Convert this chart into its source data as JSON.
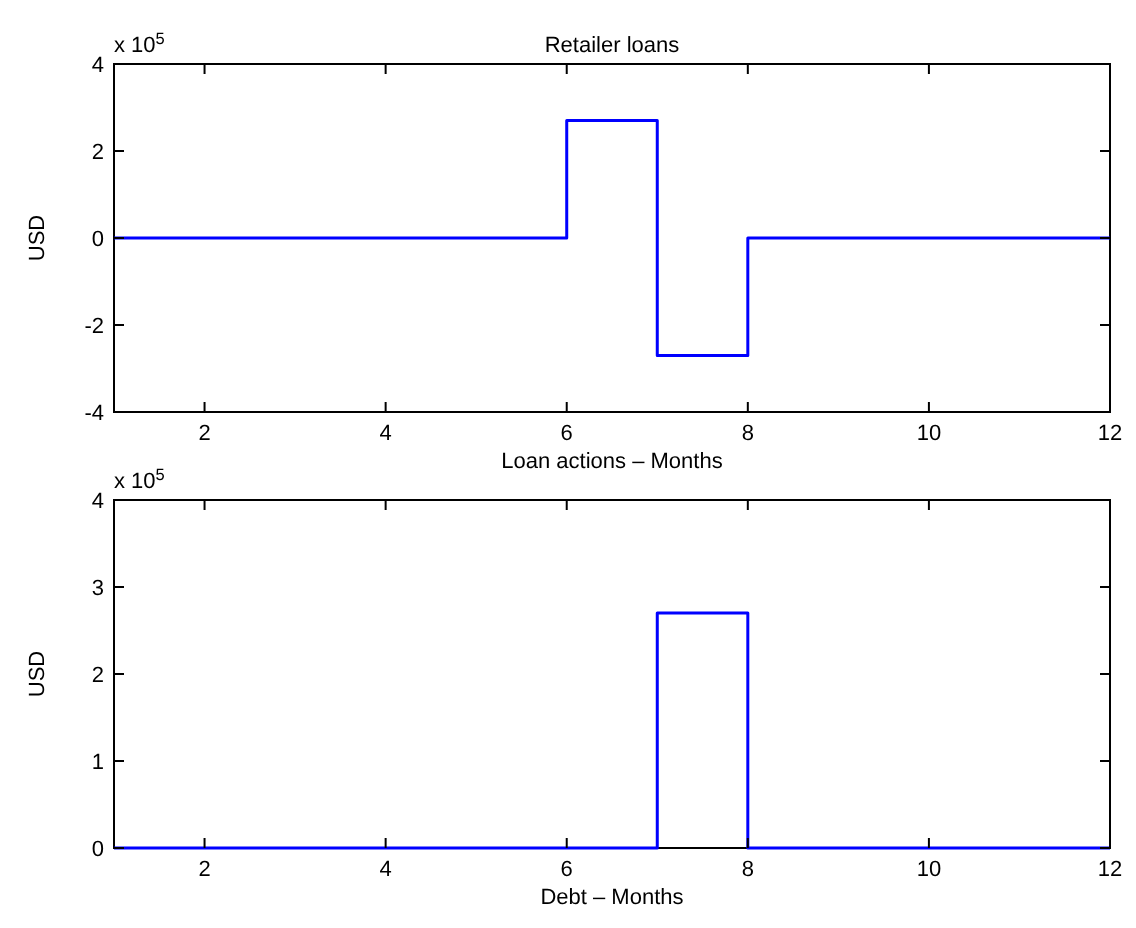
{
  "chart_data": [
    {
      "type": "step",
      "title": "Retailer loans",
      "xlabel": "Loan actions – Months",
      "ylabel": "USD",
      "annotations": [
        "x 10$^{5}$"
      ],
      "x": [
        1,
        2,
        3,
        4,
        5,
        6,
        7,
        8,
        9,
        10,
        11,
        12
      ],
      "series": [
        {
          "color": "#0000ff",
          "values": [
            0,
            0,
            0,
            0,
            0,
            2.7,
            -2.7,
            0,
            0,
            0,
            0,
            0
          ]
        }
      ],
      "xlim": [
        1,
        12
      ],
      "xticks": [
        2,
        4,
        6,
        8,
        10,
        12
      ],
      "ylim": [
        -4,
        4
      ],
      "yticks": [
        -4,
        -2,
        0,
        2,
        4
      ],
      "grid": false
    },
    {
      "type": "step",
      "xlabel": "Debt – Months",
      "ylabel": "USD",
      "annotations": [
        "x 10$^{5}$"
      ],
      "x": [
        1,
        2,
        3,
        4,
        5,
        6,
        7,
        8,
        9,
        10,
        11,
        12
      ],
      "series": [
        {
          "color": "#0000ff",
          "values": [
            0,
            0,
            0,
            0,
            0,
            0,
            2.7,
            0,
            0,
            0,
            0,
            0
          ]
        }
      ],
      "xlim": [
        1,
        12
      ],
      "xticks": [
        2,
        4,
        6,
        8,
        10,
        12
      ],
      "ylim": [
        0,
        4
      ],
      "yticks": [
        0,
        1,
        2,
        3,
        4
      ],
      "grid": false
    }
  ]
}
